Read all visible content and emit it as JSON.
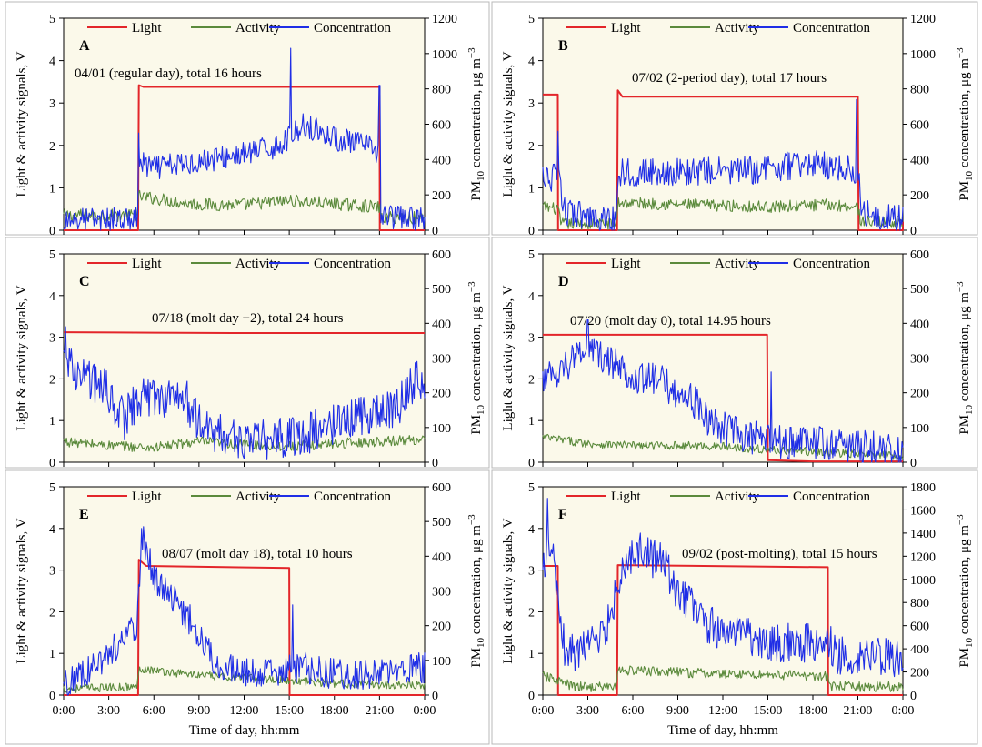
{
  "figure": {
    "legend": {
      "light": "Light",
      "activity": "Activity",
      "concentration": "Concentration"
    },
    "left_ylabel": "Light & activity signals, V",
    "right_ylabel_main": "PM",
    "right_ylabel_sub": "10",
    "right_ylabel_rest": " concentration, μg m",
    "right_ylabel_sup": "−3",
    "xlabel": "Time of day, hh:mm",
    "x_ticks": [
      "0:00",
      "3:00",
      "6:00",
      "9:00",
      "12:00",
      "15:00",
      "18:00",
      "21:00",
      "0:00"
    ]
  },
  "colors": {
    "light": "#e3262a",
    "activity": "#5b8a3c",
    "concentration": "#1f2ee6",
    "plot_bg": "#fbf9ea",
    "frame": "#b8b8b8"
  },
  "chart_data": [
    {
      "panel": "A",
      "type": "line",
      "annotation": "04/01 (regular day), total 16 hours",
      "xlim": [
        0,
        24
      ],
      "ylim_left": [
        0,
        5
      ],
      "ylim_right": [
        0,
        1200
      ],
      "left_ticks": [
        0,
        1,
        2,
        3,
        4,
        5
      ],
      "right_ticks": [
        0,
        200,
        400,
        600,
        800,
        1000,
        1200
      ],
      "series": [
        {
          "name": "Light",
          "axis": "left",
          "points": [
            [
              0,
              0
            ],
            [
              4.95,
              0
            ],
            [
              5,
              3.42
            ],
            [
              5.3,
              3.38
            ],
            [
              21,
              3.38
            ],
            [
              21.02,
              0
            ],
            [
              24,
              0
            ]
          ]
        },
        {
          "name": "Activity",
          "axis": "left",
          "base": [
            [
              0,
              0.35
            ],
            [
              4.9,
              0.35
            ],
            [
              5,
              0.8
            ],
            [
              9,
              0.6
            ],
            [
              12,
              0.6
            ],
            [
              15,
              0.7
            ],
            [
              18,
              0.62
            ],
            [
              21,
              0.55
            ],
            [
              21.1,
              0.3
            ],
            [
              24,
              0.3
            ]
          ],
          "noise": 0.15
        },
        {
          "name": "Concentration",
          "axis": "right",
          "base": [
            [
              0,
              60
            ],
            [
              4.9,
              60
            ],
            [
              5,
              380
            ],
            [
              6,
              350
            ],
            [
              9,
              390
            ],
            [
              12,
              430
            ],
            [
              14,
              470
            ],
            [
              15,
              520
            ],
            [
              16,
              600
            ],
            [
              18,
              520
            ],
            [
              20,
              480
            ],
            [
              21,
              440
            ],
            [
              21.1,
              80
            ],
            [
              24,
              60
            ]
          ],
          "noise": 70,
          "spikes": [
            [
              15.1,
              1030
            ],
            [
              21,
              820
            ],
            [
              5,
              550
            ]
          ]
        }
      ]
    },
    {
      "panel": "B",
      "type": "line",
      "annotation": "07/02 (2-period day), total 17 hours",
      "xlim": [
        0,
        24
      ],
      "ylim_left": [
        0,
        5
      ],
      "ylim_right": [
        0,
        1200
      ],
      "left_ticks": [
        0,
        1,
        2,
        3,
        4,
        5
      ],
      "right_ticks": [
        0,
        200,
        400,
        600,
        800,
        1000,
        1200
      ],
      "series": [
        {
          "name": "Light",
          "axis": "left",
          "points": [
            [
              0,
              3.2
            ],
            [
              1,
              3.2
            ],
            [
              1.02,
              0
            ],
            [
              4.95,
              0
            ],
            [
              5,
              3.3
            ],
            [
              5.3,
              3.15
            ],
            [
              21,
              3.15
            ],
            [
              21.05,
              0
            ],
            [
              24,
              0
            ],
            [
              24,
              0.2
            ]
          ]
        },
        {
          "name": "Activity",
          "axis": "left",
          "base": [
            [
              0,
              0.55
            ],
            [
              1,
              0.5
            ],
            [
              1.2,
              0.15
            ],
            [
              4.9,
              0.15
            ],
            [
              5,
              0.65
            ],
            [
              10,
              0.6
            ],
            [
              15,
              0.55
            ],
            [
              19,
              0.6
            ],
            [
              21,
              0.55
            ],
            [
              21.2,
              0.2
            ],
            [
              24,
              0.2
            ]
          ],
          "noise": 0.14
        },
        {
          "name": "Concentration",
          "axis": "right",
          "base": [
            [
              0,
              280
            ],
            [
              1,
              300
            ],
            [
              1.5,
              100
            ],
            [
              4.9,
              60
            ],
            [
              5,
              330
            ],
            [
              9,
              330
            ],
            [
              14,
              340
            ],
            [
              18,
              380
            ],
            [
              20,
              350
            ],
            [
              21,
              330
            ],
            [
              21.3,
              100
            ],
            [
              24,
              60
            ]
          ],
          "noise": 80,
          "spikes": [
            [
              1,
              560
            ],
            [
              20.9,
              740
            ]
          ]
        }
      ]
    },
    {
      "panel": "C",
      "type": "line",
      "annotation": "07/18 (molt day −2), total 24 hours",
      "xlim": [
        0,
        24
      ],
      "ylim_left": [
        0,
        5
      ],
      "ylim_right": [
        0,
        600
      ],
      "left_ticks": [
        0,
        1,
        2,
        3,
        4,
        5
      ],
      "right_ticks": [
        0,
        100,
        200,
        300,
        400,
        500,
        600
      ],
      "series": [
        {
          "name": "Light",
          "axis": "left",
          "points": [
            [
              0,
              3.12
            ],
            [
              6,
              3.11
            ],
            [
              12,
              3.1
            ],
            [
              18,
              3.1
            ],
            [
              24,
              3.1
            ]
          ]
        },
        {
          "name": "Activity",
          "axis": "left",
          "base": [
            [
              0,
              0.5
            ],
            [
              3,
              0.4
            ],
            [
              6,
              0.35
            ],
            [
              9,
              0.5
            ],
            [
              12,
              0.42
            ],
            [
              15,
              0.38
            ],
            [
              18,
              0.45
            ],
            [
              21,
              0.5
            ],
            [
              24,
              0.55
            ]
          ],
          "noise": 0.12
        },
        {
          "name": "Concentration",
          "axis": "right",
          "base": [
            [
              0,
              280
            ],
            [
              1,
              260
            ],
            [
              3,
              200
            ],
            [
              4,
              120
            ],
            [
              5,
              190
            ],
            [
              8,
              190
            ],
            [
              9,
              110
            ],
            [
              11,
              70
            ],
            [
              13,
              60
            ],
            [
              16,
              80
            ],
            [
              18,
              110
            ],
            [
              20,
              140
            ],
            [
              22,
              150
            ],
            [
              23,
              210
            ],
            [
              23.6,
              260
            ],
            [
              24,
              210
            ]
          ],
          "noise": 60,
          "spikes": [
            [
              0.1,
              390
            ],
            [
              23.5,
              290
            ]
          ]
        }
      ]
    },
    {
      "panel": "D",
      "type": "line",
      "annotation": "07/20 (molt day 0), total 14.95 hours",
      "xlim": [
        0,
        24
      ],
      "ylim_left": [
        0,
        5
      ],
      "ylim_right": [
        0,
        600
      ],
      "left_ticks": [
        0,
        1,
        2,
        3,
        4,
        5
      ],
      "right_ticks": [
        0,
        100,
        200,
        300,
        400,
        500,
        600
      ],
      "series": [
        {
          "name": "Light",
          "axis": "left",
          "points": [
            [
              0,
              3.06
            ],
            [
              14.95,
              3.06
            ],
            [
              15,
              0.05
            ],
            [
              18,
              0.02
            ],
            [
              24,
              0.02
            ]
          ]
        },
        {
          "name": "Activity",
          "axis": "left",
          "base": [
            [
              0,
              0.6
            ],
            [
              3,
              0.45
            ],
            [
              6,
              0.4
            ],
            [
              9,
              0.4
            ],
            [
              12,
              0.38
            ],
            [
              15,
              0.3
            ],
            [
              18,
              0.25
            ],
            [
              21,
              0.2
            ],
            [
              24,
              0.15
            ]
          ],
          "noise": 0.1
        },
        {
          "name": "Concentration",
          "axis": "right",
          "base": [
            [
              0,
              240
            ],
            [
              1.5,
              280
            ],
            [
              3,
              330
            ],
            [
              4,
              300
            ],
            [
              6,
              250
            ],
            [
              8,
              230
            ],
            [
              9,
              200
            ],
            [
              10,
              180
            ],
            [
              11,
              120
            ],
            [
              13,
              80
            ],
            [
              15,
              60
            ],
            [
              17,
              60
            ],
            [
              20,
              50
            ],
            [
              22,
              40
            ],
            [
              24,
              30
            ]
          ],
          "noise": 50,
          "spikes": [
            [
              3,
              410
            ],
            [
              15.2,
              260
            ]
          ]
        }
      ]
    },
    {
      "panel": "E",
      "type": "line",
      "annotation": "08/07 (molt day 18), total 10 hours",
      "xlim": [
        0,
        24
      ],
      "ylim_left": [
        0,
        5
      ],
      "ylim_right": [
        0,
        600
      ],
      "left_ticks": [
        0,
        1,
        2,
        3,
        4,
        5
      ],
      "right_ticks": [
        0,
        100,
        200,
        300,
        400,
        500,
        600
      ],
      "series": [
        {
          "name": "Light",
          "axis": "left",
          "points": [
            [
              0,
              0
            ],
            [
              4.95,
              0
            ],
            [
              5,
              3.25
            ],
            [
              5.5,
              3.1
            ],
            [
              15,
              3.05
            ],
            [
              15.02,
              0
            ],
            [
              24,
              0
            ]
          ]
        },
        {
          "name": "Activity",
          "axis": "left",
          "base": [
            [
              0,
              0.15
            ],
            [
              4.9,
              0.2
            ],
            [
              5,
              0.65
            ],
            [
              7,
              0.55
            ],
            [
              10,
              0.45
            ],
            [
              13,
              0.4
            ],
            [
              15,
              0.35
            ],
            [
              18,
              0.28
            ],
            [
              21,
              0.25
            ],
            [
              24,
              0.25
            ]
          ],
          "noise": 0.1
        },
        {
          "name": "Concentration",
          "axis": "right",
          "base": [
            [
              0,
              30
            ],
            [
              2,
              80
            ],
            [
              4,
              160
            ],
            [
              4.9,
              200
            ],
            [
              5.2,
              470
            ],
            [
              6,
              340
            ],
            [
              8,
              240
            ],
            [
              9,
              180
            ],
            [
              10,
              100
            ],
            [
              12,
              60
            ],
            [
              15,
              70
            ],
            [
              16,
              80
            ],
            [
              18,
              60
            ],
            [
              21,
              60
            ],
            [
              24,
              80
            ]
          ],
          "noise": 45,
          "spikes": [
            [
              5.2,
              480
            ],
            [
              15.2,
              260
            ]
          ]
        }
      ]
    },
    {
      "panel": "F",
      "type": "line",
      "annotation": "09/02 (post-molting), total 15 hours",
      "xlim": [
        0,
        24
      ],
      "ylim_left": [
        0,
        5
      ],
      "ylim_right": [
        0,
        1800
      ],
      "left_ticks": [
        0,
        1,
        2,
        3,
        4,
        5
      ],
      "right_ticks": [
        0,
        200,
        400,
        600,
        800,
        1000,
        1200,
        1400,
        1600,
        1800
      ],
      "series": [
        {
          "name": "Light",
          "axis": "left",
          "points": [
            [
              0,
              3.1
            ],
            [
              1,
              3.1
            ],
            [
              1.02,
              0
            ],
            [
              4.95,
              0
            ],
            [
              5,
              3.12
            ],
            [
              19,
              3.07
            ],
            [
              19.02,
              0
            ],
            [
              24,
              0
            ]
          ]
        },
        {
          "name": "Activity",
          "axis": "left",
          "base": [
            [
              0,
              0.45
            ],
            [
              1,
              0.35
            ],
            [
              2,
              0.2
            ],
            [
              4.9,
              0.2
            ],
            [
              5,
              0.6
            ],
            [
              9,
              0.55
            ],
            [
              12,
              0.5
            ],
            [
              15,
              0.5
            ],
            [
              19,
              0.45
            ],
            [
              19.2,
              0.2
            ],
            [
              24,
              0.2
            ]
          ],
          "noise": 0.12
        },
        {
          "name": "Concentration",
          "axis": "right",
          "base": [
            [
              0,
              1100
            ],
            [
              0.5,
              1300
            ],
            [
              1,
              900
            ],
            [
              1.5,
              350
            ],
            [
              3,
              400
            ],
            [
              4.5,
              650
            ],
            [
              5,
              1000
            ],
            [
              6,
              1250
            ],
            [
              8,
              1150
            ],
            [
              9,
              900
            ],
            [
              11,
              600
            ],
            [
              14,
              500
            ],
            [
              16,
              450
            ],
            [
              18,
              450
            ],
            [
              19,
              520
            ],
            [
              19.5,
              350
            ],
            [
              22,
              350
            ],
            [
              24,
              300
            ]
          ],
          "noise": 170,
          "spikes": [
            [
              0.3,
              1700
            ],
            [
              6.5,
              1400
            ]
          ]
        }
      ]
    }
  ]
}
